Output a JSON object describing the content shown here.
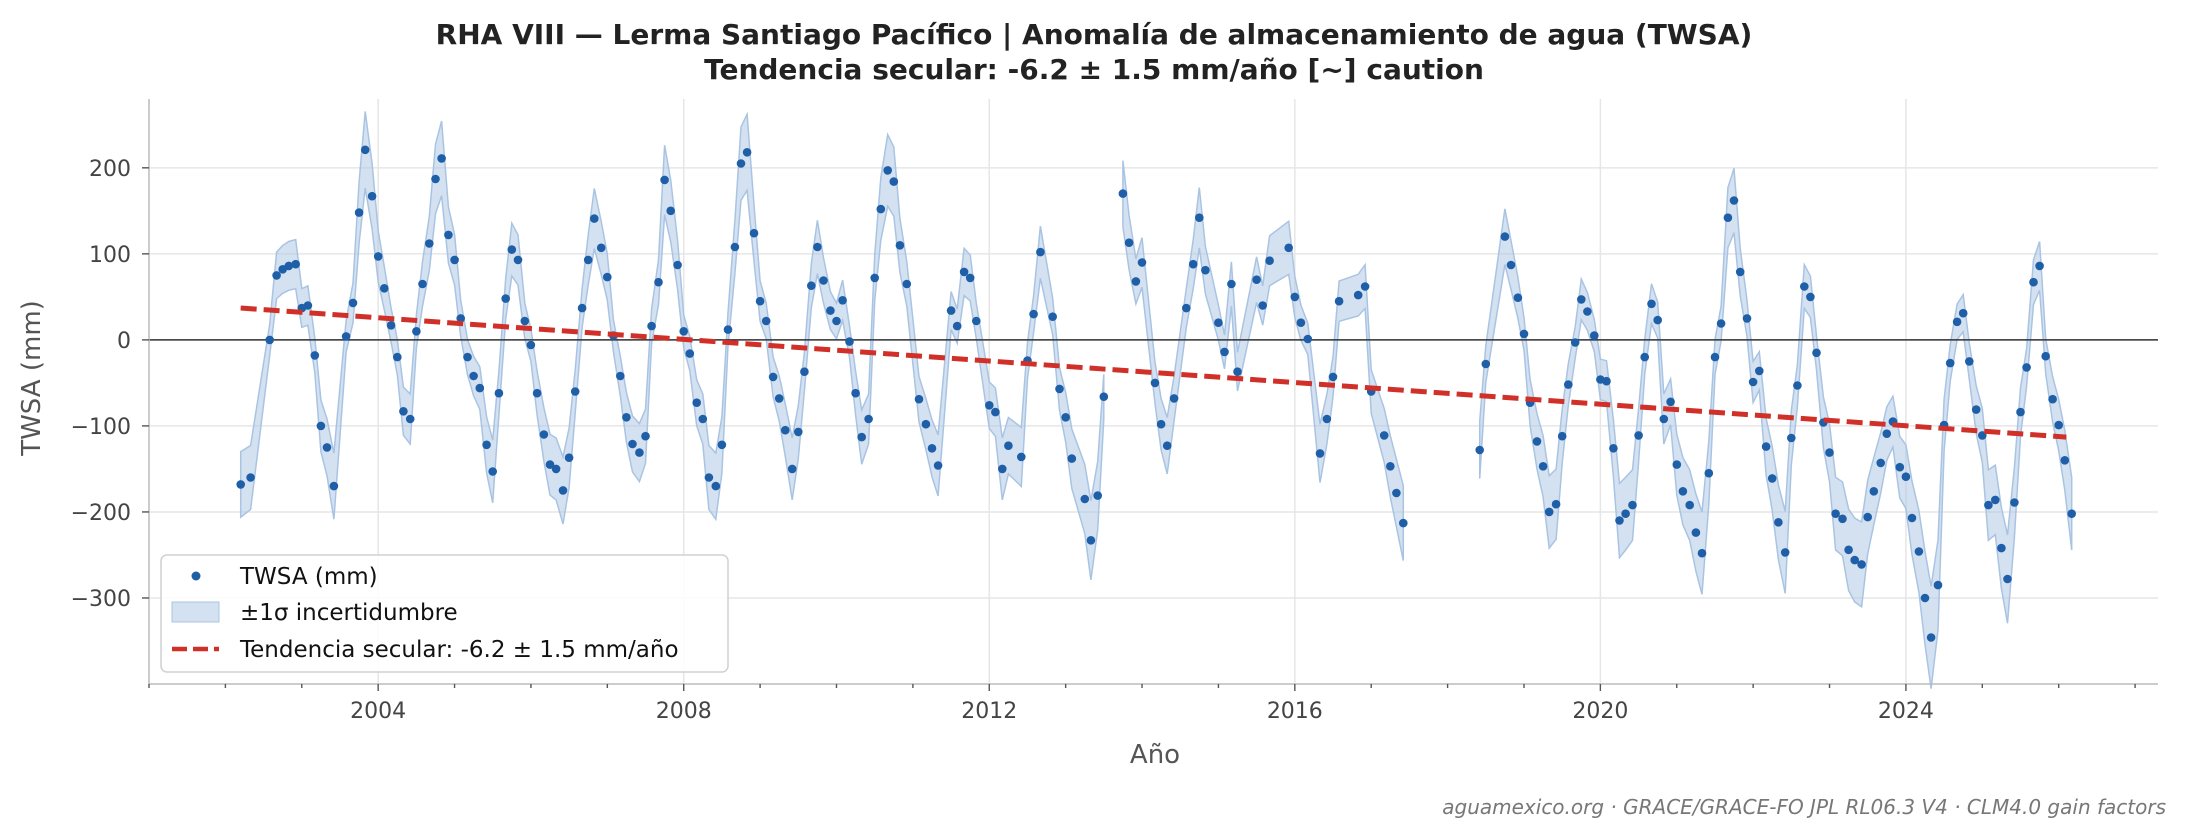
{
  "chart_data": {
    "type": "scatter",
    "title": "RHA VIII — Lerma Santiago Pacífico  |  Anomalía de almacenamiento de agua (TWSA)",
    "subtitle": "Tendencia secular: -6.2 ± 1.5 mm/año  [~] caution",
    "xlabel": "Año",
    "ylabel": "TWSA (mm)",
    "xlim": [
      2001.0,
      2027.3
    ],
    "ylim": [
      -400,
      280
    ],
    "x_ticks": [
      2004,
      2008,
      2012,
      2016,
      2020,
      2024
    ],
    "y_ticks": [
      200,
      100,
      0,
      -100,
      -200,
      -300
    ],
    "grid": true,
    "legend_position": "lower-left",
    "legend": {
      "points": "TWSA (mm)",
      "band": "±1σ incertidumbre",
      "trend": "Tendencia secular: -6.2 ± 1.5 mm/año"
    },
    "source": "aguamexico.org · GRACE/GRACE-FO JPL RL06.3 V4 · CLM4.0 gain factors",
    "colors": {
      "points": "#1f5fa8",
      "band": "#a9c4e3",
      "trend": "#d03028",
      "zero": "#333333"
    },
    "trend": {
      "x": [
        2002.2,
        2026.1
      ],
      "y": [
        37,
        -113
      ]
    },
    "segments": [
      {
        "points": [
          [
            2002.2,
            -168
          ],
          [
            2002.33,
            -160
          ],
          [
            2002.58,
            0
          ],
          [
            2002.67,
            75
          ],
          [
            2002.75,
            82
          ],
          [
            2002.83,
            86
          ],
          [
            2002.92,
            88
          ],
          [
            2003.0,
            37
          ],
          [
            2003.08,
            40
          ],
          [
            2003.17,
            -18
          ],
          [
            2003.25,
            -100
          ],
          [
            2003.33,
            -125
          ],
          [
            2003.42,
            -170
          ],
          [
            2003.58,
            4
          ],
          [
            2003.67,
            43
          ],
          [
            2003.75,
            148
          ],
          [
            2003.83,
            221
          ],
          [
            2003.92,
            167
          ],
          [
            2004.0,
            97
          ],
          [
            2004.08,
            60
          ],
          [
            2004.17,
            17
          ],
          [
            2004.25,
            -20
          ],
          [
            2004.33,
            -83
          ],
          [
            2004.42,
            -92
          ],
          [
            2004.5,
            10
          ],
          [
            2004.58,
            65
          ],
          [
            2004.67,
            112
          ],
          [
            2004.75,
            187
          ],
          [
            2004.83,
            211
          ],
          [
            2004.92,
            122
          ],
          [
            2005.0,
            93
          ],
          [
            2005.08,
            25
          ],
          [
            2005.17,
            -20
          ],
          [
            2005.25,
            -42
          ],
          [
            2005.33,
            -56
          ],
          [
            2005.42,
            -122
          ],
          [
            2005.5,
            -153
          ],
          [
            2005.58,
            -62
          ],
          [
            2005.67,
            48
          ],
          [
            2005.75,
            105
          ],
          [
            2005.83,
            93
          ],
          [
            2005.92,
            22
          ],
          [
            2006.0,
            -6
          ],
          [
            2006.08,
            -62
          ],
          [
            2006.17,
            -110
          ],
          [
            2006.25,
            -145
          ],
          [
            2006.33,
            -150
          ],
          [
            2006.42,
            -175
          ],
          [
            2006.5,
            -137
          ],
          [
            2006.58,
            -60
          ],
          [
            2006.67,
            37
          ],
          [
            2006.75,
            93
          ],
          [
            2006.83,
            141
          ],
          [
            2006.92,
            107
          ],
          [
            2007.0,
            73
          ],
          [
            2007.08,
            5
          ],
          [
            2007.17,
            -42
          ],
          [
            2007.25,
            -90
          ],
          [
            2007.33,
            -121
          ],
          [
            2007.42,
            -131
          ],
          [
            2007.5,
            -112
          ],
          [
            2007.58,
            16
          ],
          [
            2007.67,
            67
          ],
          [
            2007.75,
            186
          ],
          [
            2007.83,
            150
          ],
          [
            2007.92,
            87
          ],
          [
            2008.0,
            10
          ],
          [
            2008.08,
            -16
          ],
          [
            2008.17,
            -73
          ],
          [
            2008.25,
            -92
          ],
          [
            2008.33,
            -160
          ],
          [
            2008.42,
            -170
          ],
          [
            2008.5,
            -122
          ],
          [
            2008.58,
            12
          ],
          [
            2008.67,
            108
          ],
          [
            2008.75,
            205
          ],
          [
            2008.83,
            218
          ],
          [
            2008.92,
            124
          ],
          [
            2009.0,
            45
          ],
          [
            2009.08,
            22
          ],
          [
            2009.17,
            -43
          ],
          [
            2009.25,
            -68
          ],
          [
            2009.33,
            -105
          ],
          [
            2009.42,
            -150
          ],
          [
            2009.5,
            -107
          ],
          [
            2009.58,
            -37
          ],
          [
            2009.67,
            63
          ],
          [
            2009.75,
            108
          ],
          [
            2009.83,
            69
          ],
          [
            2009.92,
            34
          ],
          [
            2010.0,
            22
          ],
          [
            2010.08,
            46
          ],
          [
            2010.17,
            -2
          ],
          [
            2010.25,
            -62
          ],
          [
            2010.33,
            -113
          ],
          [
            2010.42,
            -92
          ],
          [
            2010.5,
            72
          ],
          [
            2010.58,
            152
          ],
          [
            2010.67,
            197
          ],
          [
            2010.75,
            184
          ],
          [
            2010.83,
            110
          ],
          [
            2010.92,
            65
          ],
          [
            2011.08,
            -69
          ],
          [
            2011.17,
            -98
          ],
          [
            2011.25,
            -126
          ],
          [
            2011.33,
            -146
          ],
          [
            2011.5,
            34
          ],
          [
            2011.58,
            16
          ],
          [
            2011.67,
            79
          ],
          [
            2011.75,
            72
          ],
          [
            2011.83,
            22
          ],
          [
            2012.0,
            -76
          ],
          [
            2012.08,
            -84
          ],
          [
            2012.17,
            -150
          ],
          [
            2012.25,
            -123
          ],
          [
            2012.42,
            -136
          ],
          [
            2012.5,
            -24
          ],
          [
            2012.58,
            30
          ],
          [
            2012.67,
            102
          ],
          [
            2012.83,
            27
          ],
          [
            2012.92,
            -57
          ],
          [
            2013.0,
            -90
          ],
          [
            2013.08,
            -138
          ],
          [
            2013.25,
            -185
          ],
          [
            2013.33,
            -233
          ],
          [
            2013.42,
            -181
          ],
          [
            2013.5,
            -66
          ]
        ]
      },
      {
        "points": [
          [
            2013.75,
            170
          ],
          [
            2013.83,
            113
          ],
          [
            2013.92,
            68
          ],
          [
            2014.0,
            90
          ],
          [
            2014.17,
            -50
          ],
          [
            2014.25,
            -98
          ],
          [
            2014.33,
            -123
          ],
          [
            2014.42,
            -68
          ],
          [
            2014.58,
            37
          ],
          [
            2014.67,
            88
          ],
          [
            2014.75,
            142
          ],
          [
            2014.83,
            81
          ],
          [
            2015.0,
            20
          ],
          [
            2015.08,
            -14
          ],
          [
            2015.17,
            65
          ],
          [
            2015.25,
            -37
          ],
          [
            2015.5,
            70
          ],
          [
            2015.58,
            40
          ],
          [
            2015.67,
            92
          ],
          [
            2015.92,
            107
          ],
          [
            2016.0,
            50
          ],
          [
            2016.08,
            20
          ],
          [
            2016.17,
            1
          ],
          [
            2016.33,
            -132
          ],
          [
            2016.42,
            -92
          ],
          [
            2016.5,
            -43
          ],
          [
            2016.58,
            45
          ],
          [
            2016.83,
            52
          ],
          [
            2016.92,
            62
          ],
          [
            2017.0,
            -60
          ],
          [
            2017.17,
            -111
          ],
          [
            2017.25,
            -147
          ],
          [
            2017.33,
            -178
          ],
          [
            2017.42,
            -213
          ]
        ]
      },
      {
        "points": [
          [
            2018.42,
            -128
          ],
          [
            2018.5,
            -28
          ],
          [
            2018.75,
            120
          ],
          [
            2018.83,
            87
          ],
          [
            2018.92,
            49
          ],
          [
            2019.0,
            7
          ],
          [
            2019.08,
            -73
          ],
          [
            2019.17,
            -118
          ],
          [
            2019.25,
            -147
          ],
          [
            2019.33,
            -200
          ],
          [
            2019.42,
            -191
          ],
          [
            2019.5,
            -112
          ],
          [
            2019.58,
            -52
          ],
          [
            2019.67,
            -3
          ],
          [
            2019.75,
            47
          ],
          [
            2019.83,
            33
          ],
          [
            2019.92,
            5
          ],
          [
            2020.0,
            -46
          ],
          [
            2020.08,
            -48
          ],
          [
            2020.17,
            -126
          ],
          [
            2020.25,
            -210
          ],
          [
            2020.33,
            -202
          ],
          [
            2020.42,
            -192
          ],
          [
            2020.5,
            -111
          ],
          [
            2020.58,
            -20
          ],
          [
            2020.67,
            42
          ],
          [
            2020.75,
            23
          ],
          [
            2020.83,
            -92
          ],
          [
            2020.92,
            -72
          ],
          [
            2021.0,
            -145
          ],
          [
            2021.08,
            -176
          ],
          [
            2021.17,
            -192
          ],
          [
            2021.25,
            -224
          ],
          [
            2021.33,
            -248
          ],
          [
            2021.42,
            -155
          ],
          [
            2021.5,
            -20
          ],
          [
            2021.58,
            19
          ],
          [
            2021.67,
            142
          ],
          [
            2021.75,
            162
          ],
          [
            2021.83,
            79
          ],
          [
            2021.92,
            25
          ],
          [
            2022.0,
            -49
          ],
          [
            2022.08,
            -36
          ],
          [
            2022.17,
            -124
          ],
          [
            2022.25,
            -161
          ],
          [
            2022.33,
            -212
          ],
          [
            2022.42,
            -247
          ],
          [
            2022.5,
            -114
          ],
          [
            2022.58,
            -53
          ],
          [
            2022.67,
            62
          ],
          [
            2022.75,
            50
          ],
          [
            2022.83,
            -15
          ],
          [
            2022.92,
            -96
          ],
          [
            2023.0,
            -131
          ],
          [
            2023.08,
            -202
          ],
          [
            2023.17,
            -208
          ],
          [
            2023.25,
            -244
          ],
          [
            2023.33,
            -256
          ],
          [
            2023.42,
            -261
          ],
          [
            2023.5,
            -206
          ],
          [
            2023.58,
            -176
          ],
          [
            2023.67,
            -143
          ],
          [
            2023.75,
            -109
          ],
          [
            2023.83,
            -95
          ],
          [
            2023.92,
            -148
          ],
          [
            2024.0,
            -159
          ],
          [
            2024.08,
            -207
          ],
          [
            2024.17,
            -246
          ],
          [
            2024.25,
            -300
          ],
          [
            2024.33,
            -346
          ],
          [
            2024.42,
            -285
          ],
          [
            2024.5,
            -99
          ],
          [
            2024.58,
            -27
          ],
          [
            2024.67,
            21
          ],
          [
            2024.75,
            31
          ],
          [
            2024.83,
            -25
          ],
          [
            2024.92,
            -81
          ],
          [
            2025.0,
            -111
          ],
          [
            2025.08,
            -192
          ],
          [
            2025.17,
            -186
          ],
          [
            2025.25,
            -242
          ],
          [
            2025.33,
            -278
          ],
          [
            2025.42,
            -189
          ],
          [
            2025.5,
            -84
          ],
          [
            2025.58,
            -32
          ],
          [
            2025.67,
            67
          ],
          [
            2025.75,
            86
          ],
          [
            2025.83,
            -19
          ],
          [
            2025.92,
            -69
          ],
          [
            2026.0,
            -99
          ],
          [
            2026.08,
            -140
          ],
          [
            2026.17,
            -202
          ]
        ]
      }
    ]
  }
}
